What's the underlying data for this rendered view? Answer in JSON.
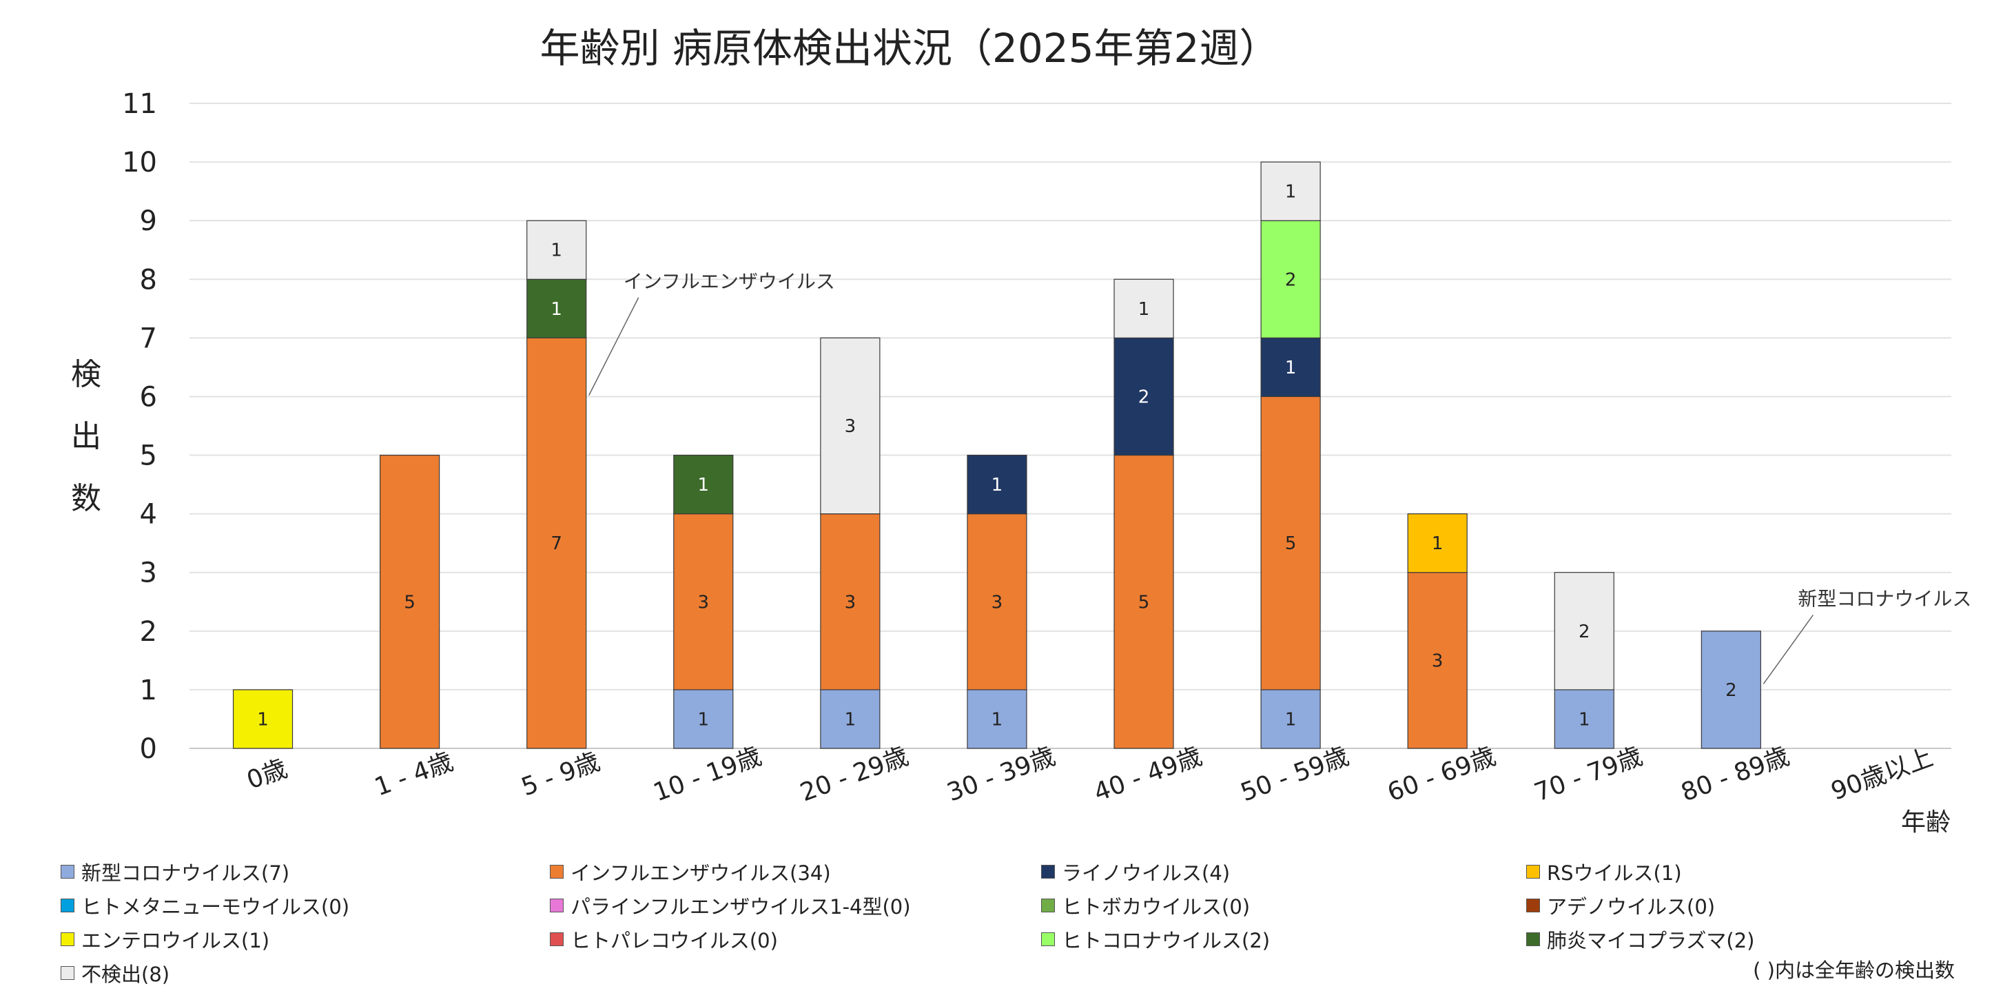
{
  "chart_data": {
    "type": "bar",
    "stacked": true,
    "title": "年齢別 病原体検出状況（2025年第2週）",
    "ylabel": "検出数",
    "xlabel": "年齢",
    "ylim": [
      0,
      11
    ],
    "yticks": [
      0,
      1,
      2,
      3,
      4,
      5,
      6,
      7,
      8,
      9,
      10,
      11
    ],
    "grid": true,
    "legend_position": "bottom",
    "categories": [
      "0歳",
      "1 - 4歳",
      "5 - 9歳",
      "10 - 19歳",
      "20 - 29歳",
      "30 - 39歳",
      "40 - 49歳",
      "50 - 59歳",
      "60 - 69歳",
      "70 - 79歳",
      "80 - 89歳",
      "90歳以上"
    ],
    "series": [
      {
        "name": "新型コロナウイルス(7)",
        "color": "#8faadc",
        "label_color": "#222222",
        "values": [
          0,
          0,
          0,
          1,
          1,
          1,
          0,
          1,
          0,
          1,
          2,
          0
        ]
      },
      {
        "name": "インフルエンザウイルス(34)",
        "color": "#ed7d31",
        "label_color": "#222222",
        "values": [
          0,
          5,
          7,
          3,
          3,
          3,
          5,
          5,
          3,
          0,
          0,
          0
        ]
      },
      {
        "name": "ライノウイルス(4)",
        "color": "#203864",
        "label_color": "#ffffff",
        "values": [
          0,
          0,
          0,
          0,
          0,
          1,
          2,
          1,
          0,
          0,
          0,
          0
        ]
      },
      {
        "name": "RSウイルス(1)",
        "color": "#ffc000",
        "label_color": "#222222",
        "values": [
          0,
          0,
          0,
          0,
          0,
          0,
          0,
          0,
          1,
          0,
          0,
          0
        ]
      },
      {
        "name": "ヒトメタニューモウイルス(0)",
        "color": "#00a0e0",
        "label_color": "#222222",
        "values": [
          0,
          0,
          0,
          0,
          0,
          0,
          0,
          0,
          0,
          0,
          0,
          0
        ]
      },
      {
        "name": "パラインフルエンザウイルス1-4型(0)",
        "color": "#e878d8",
        "label_color": "#222222",
        "values": [
          0,
          0,
          0,
          0,
          0,
          0,
          0,
          0,
          0,
          0,
          0,
          0
        ]
      },
      {
        "name": "ヒトボカウイルス(0)",
        "color": "#70ad47",
        "label_color": "#222222",
        "values": [
          0,
          0,
          0,
          0,
          0,
          0,
          0,
          0,
          0,
          0,
          0,
          0
        ]
      },
      {
        "name": "アデノウイルス(0)",
        "color": "#9e3d0b",
        "label_color": "#ffffff",
        "values": [
          0,
          0,
          0,
          0,
          0,
          0,
          0,
          0,
          0,
          0,
          0,
          0
        ]
      },
      {
        "name": "エンテロウイルス(1)",
        "color": "#f5f000",
        "label_color": "#222222",
        "values": [
          1,
          0,
          0,
          0,
          0,
          0,
          0,
          0,
          0,
          0,
          0,
          0
        ]
      },
      {
        "name": "ヒトパレコウイルス(0)",
        "color": "#e05050",
        "label_color": "#222222",
        "values": [
          0,
          0,
          0,
          0,
          0,
          0,
          0,
          0,
          0,
          0,
          0,
          0
        ]
      },
      {
        "name": "ヒトコロナウイルス(2)",
        "color": "#99ff66",
        "label_color": "#222222",
        "values": [
          0,
          0,
          0,
          0,
          0,
          0,
          0,
          2,
          0,
          0,
          0,
          0
        ]
      },
      {
        "name": "肺炎マイコプラズマ(2)",
        "color": "#3d6b2a",
        "label_color": "#ffffff",
        "values": [
          0,
          0,
          1,
          1,
          0,
          0,
          0,
          0,
          0,
          0,
          0,
          0
        ]
      },
      {
        "name": "不検出(8)",
        "color": "#ececec",
        "label_color": "#222222",
        "values": [
          0,
          0,
          1,
          0,
          3,
          0,
          1,
          1,
          0,
          2,
          0,
          0
        ]
      }
    ],
    "annotations": [
      {
        "text": "インフルエンザウイルス",
        "category": "5 - 9歳",
        "series": "インフルエンザウイルス(34)"
      },
      {
        "text": "新型コロナウイルス",
        "category": "80 - 89歳",
        "series": "新型コロナウイルス(7)"
      }
    ],
    "footnote": "( )内は全年齢の検出数"
  }
}
